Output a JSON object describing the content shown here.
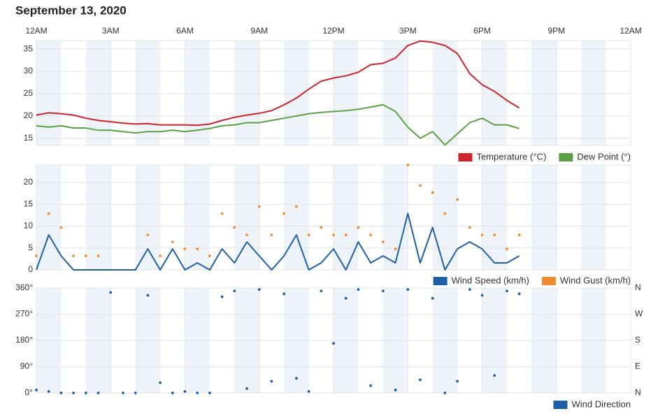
{
  "title": "September 13, 2020",
  "time_axis": {
    "xlim": [
      0,
      24
    ],
    "xticks": [
      {
        "value": 0,
        "label": "12AM"
      },
      {
        "value": 3,
        "label": "3AM"
      },
      {
        "value": 6,
        "label": "6AM"
      },
      {
        "value": 9,
        "label": "9AM"
      },
      {
        "value": 12,
        "label": "12PM"
      },
      {
        "value": 15,
        "label": "3PM"
      },
      {
        "value": 18,
        "label": "6PM"
      },
      {
        "value": 21,
        "label": "9PM"
      },
      {
        "value": 24,
        "label": "12AM"
      }
    ]
  },
  "chart_data": [
    {
      "type": "line",
      "x": [
        0,
        0.5,
        1,
        1.5,
        2,
        2.5,
        3,
        3.5,
        4,
        4.5,
        5,
        5.5,
        6,
        6.5,
        7,
        7.5,
        8,
        8.5,
        9,
        9.5,
        10,
        10.5,
        11,
        11.5,
        12,
        12.5,
        13,
        13.5,
        14,
        14.5,
        15,
        15.5,
        16,
        16.5,
        17,
        17.5,
        18,
        18.5,
        19,
        19.5
      ],
      "ylim": [
        13.4,
        36.9
      ],
      "yticks": [
        15,
        20,
        25,
        30,
        35
      ],
      "series": [
        {
          "name": "Temperature (°C)",
          "color": "#d0242b",
          "values": [
            20.2,
            20.7,
            20.5,
            20.2,
            19.5,
            19.0,
            18.7,
            18.4,
            18.2,
            18.3,
            18.0,
            18.0,
            18.0,
            17.9,
            18.2,
            19.0,
            19.7,
            20.2,
            20.6,
            21.2,
            22.5,
            24.0,
            26.0,
            27.8,
            28.5,
            29.0,
            29.8,
            31.5,
            31.8,
            33.0,
            35.8,
            36.8,
            36.5,
            35.8,
            34.0,
            29.5,
            27.0,
            25.5,
            23.5,
            21.8
          ]
        },
        {
          "name": "Dew Point (°)",
          "color": "#5aa146",
          "values": [
            17.8,
            17.5,
            17.8,
            17.3,
            17.3,
            16.8,
            16.8,
            16.5,
            16.2,
            16.5,
            16.5,
            16.8,
            16.5,
            16.8,
            17.2,
            17.8,
            18.0,
            18.5,
            18.5,
            19.0,
            19.5,
            20.0,
            20.5,
            20.8,
            21.0,
            21.2,
            21.5,
            22.0,
            22.5,
            21.0,
            17.5,
            15.0,
            16.5,
            13.5,
            16.0,
            18.5,
            19.5,
            18.0,
            18.0,
            17.2
          ]
        }
      ]
    },
    {
      "type": "line",
      "x": [
        0,
        0.5,
        1,
        1.5,
        2,
        2.5,
        3,
        3.5,
        4,
        4.5,
        5,
        5.5,
        6,
        6.5,
        7,
        7.5,
        8,
        8.5,
        9,
        9.5,
        10,
        10.5,
        11,
        11.5,
        12,
        12.5,
        13,
        13.5,
        14,
        14.5,
        15,
        15.5,
        16,
        16.5,
        17,
        17.5,
        18,
        18.5,
        19,
        19.5
      ],
      "ylim": [
        0,
        24
      ],
      "yticks": [
        0,
        5,
        10,
        15,
        20
      ],
      "series": [
        {
          "name": "Wind Speed (km/h)",
          "color": "#1f5fa8",
          "kind": "line",
          "values": [
            0,
            8,
            3.2,
            0,
            0,
            0,
            0,
            0,
            0,
            4.8,
            0,
            4.8,
            0,
            1.6,
            0,
            4.8,
            1.6,
            6.4,
            3.2,
            0,
            3.2,
            8,
            0,
            1.6,
            4.8,
            0,
            6.4,
            1.6,
            3.2,
            1.6,
            12.9,
            1.6,
            9.7,
            0,
            4.8,
            6.4,
            4.8,
            1.6,
            1.6,
            3.2
          ]
        },
        {
          "name": "Wind Gust (km/h)",
          "color": "#f28a30",
          "kind": "dots",
          "values": [
            3.2,
            12.9,
            9.7,
            3.2,
            3.2,
            3.2,
            null,
            null,
            null,
            8,
            3.2,
            6.4,
            4.8,
            4.8,
            3.2,
            12.9,
            9.7,
            8,
            14.5,
            8,
            12.9,
            14.5,
            8,
            9.7,
            8,
            8,
            9.7,
            8,
            6.4,
            4.8,
            24,
            19.3,
            17.7,
            12.9,
            16.1,
            9.7,
            8,
            8,
            4.8,
            8
          ]
        }
      ]
    },
    {
      "type": "scatter",
      "x": [
        0,
        0.5,
        1,
        1.5,
        2,
        2.5,
        3,
        3.5,
        4,
        4.5,
        5,
        5.5,
        6,
        6.5,
        7,
        7.5,
        8,
        8.5,
        9,
        9.5,
        10,
        10.5,
        11,
        11.5,
        12,
        12.5,
        13,
        13.5,
        14,
        14.5,
        15,
        15.5,
        16,
        16.5,
        17,
        17.5,
        18,
        18.5,
        19,
        19.5
      ],
      "ylim": [
        0,
        360
      ],
      "yticks": [
        {
          "value": 0,
          "label": "0°"
        },
        {
          "value": 90,
          "label": "90°"
        },
        {
          "value": 180,
          "label": "180°"
        },
        {
          "value": 270,
          "label": "270°"
        },
        {
          "value": 360,
          "label": "360°"
        }
      ],
      "y2lim": [
        0,
        360
      ],
      "y2ticks": [
        {
          "value": 0,
          "label": "N"
        },
        {
          "value": 90,
          "label": "E"
        },
        {
          "value": 180,
          "label": "S"
        },
        {
          "value": 270,
          "label": "W"
        },
        {
          "value": 360,
          "label": "N"
        }
      ],
      "series": [
        {
          "name": "Wind Direction",
          "color": "#1f5fa8",
          "kind": "dots",
          "values": [
            10,
            5,
            0,
            0,
            0,
            0,
            345,
            0,
            0,
            335,
            35,
            0,
            5,
            0,
            0,
            330,
            350,
            15,
            355,
            40,
            340,
            50,
            5,
            350,
            170,
            325,
            355,
            25,
            350,
            10,
            355,
            45,
            325,
            0,
            40,
            355,
            335,
            60,
            350,
            340
          ]
        }
      ]
    }
  ]
}
